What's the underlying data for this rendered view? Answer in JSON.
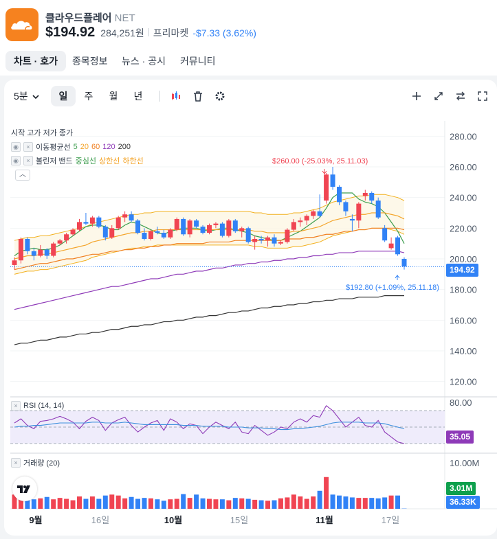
{
  "header": {
    "name": "클라우드플레어",
    "ticker": "NET",
    "price": "$194.92",
    "price_krw": "284,251원",
    "market": "프리마켓",
    "change": "-$7.33 (3.62%)",
    "logo_icon": "cloud-icon",
    "brand_color": "#f6821f"
  },
  "tabs": [
    "차트 · 호가",
    "종목정보",
    "뉴스 · 공시",
    "커뮤니티"
  ],
  "toolbar": {
    "interval": "5분",
    "periods": [
      "일",
      "주",
      "월",
      "년"
    ],
    "icons": [
      "candle-icon",
      "trash-icon",
      "gear-icon",
      "plus-icon",
      "expand-diagonal-icon",
      "swap-icon",
      "fullscreen-icon"
    ]
  },
  "legend": {
    "ohlc": "시작 고가 저가 종가",
    "ma_label": "이동평균선",
    "ma_periods": [
      "5",
      "20",
      "60",
      "120",
      "200"
    ],
    "bb_label": "볼린저 밴드",
    "bb_middle": "중심선",
    "bb_upper": "상한선",
    "bb_lower": "하한선",
    "rsi_label": "RSI (14, 14)",
    "volume_label": "거래량 (20)"
  },
  "annotations": {
    "high": "$260.00 (-25.03%, 25.11.03)",
    "low": "$192.80 (+1.09%, 25.11.18)"
  },
  "tags": {
    "price": "194.92",
    "rsi": "35.05",
    "volume_a": "3.01M",
    "volume_b": "36.33K"
  },
  "axes": {
    "price_ticks": [
      "280.00",
      "260.00",
      "240.00",
      "220.00",
      "200.00",
      "180.00",
      "160.00",
      "140.00",
      "120.00"
    ],
    "rsi_ticks": [
      "80.00"
    ],
    "volume_ticks": [
      "10.00M"
    ],
    "x_ticks": [
      "9월",
      "16일",
      "10월",
      "15일",
      "11월",
      "17일"
    ]
  },
  "colors": {
    "up": "#f04452",
    "down": "#3182f6",
    "ma5": "#3c9d4e",
    "ma20": "#f4a52b",
    "ma60": "#f07f20",
    "ma120": "#8e3ab8",
    "ma200": "#333333",
    "bb_upper": "#f2b01e",
    "rsi": "#8e3ab8",
    "rsi_signal": "#3c8fdd",
    "volume_tag": "#0ea04d"
  },
  "chart_data": {
    "type": "candlestick",
    "y_range": [
      110,
      290
    ],
    "candles": [
      {
        "o": 196,
        "h": 201,
        "l": 193,
        "c": 199
      },
      {
        "o": 199,
        "h": 214,
        "l": 197,
        "c": 213
      },
      {
        "o": 213,
        "h": 214,
        "l": 203,
        "c": 205
      },
      {
        "o": 205,
        "h": 207,
        "l": 199,
        "c": 202
      },
      {
        "o": 202,
        "h": 209,
        "l": 201,
        "c": 206
      },
      {
        "o": 206,
        "h": 207,
        "l": 200,
        "c": 202
      },
      {
        "o": 202,
        "h": 211,
        "l": 201,
        "c": 210
      },
      {
        "o": 210,
        "h": 213,
        "l": 209,
        "c": 212
      },
      {
        "o": 212,
        "h": 217,
        "l": 210,
        "c": 216
      },
      {
        "o": 216,
        "h": 220,
        "l": 215,
        "c": 219
      },
      {
        "o": 219,
        "h": 226,
        "l": 218,
        "c": 224
      },
      {
        "o": 224,
        "h": 230,
        "l": 222,
        "c": 223
      },
      {
        "o": 223,
        "h": 228,
        "l": 221,
        "c": 227
      },
      {
        "o": 227,
        "h": 228,
        "l": 220,
        "c": 221
      },
      {
        "o": 221,
        "h": 222,
        "l": 212,
        "c": 214
      },
      {
        "o": 214,
        "h": 222,
        "l": 213,
        "c": 220
      },
      {
        "o": 220,
        "h": 228,
        "l": 219,
        "c": 227
      },
      {
        "o": 227,
        "h": 231,
        "l": 224,
        "c": 229
      },
      {
        "o": 229,
        "h": 231,
        "l": 224,
        "c": 225
      },
      {
        "o": 225,
        "h": 226,
        "l": 216,
        "c": 217
      },
      {
        "o": 217,
        "h": 220,
        "l": 212,
        "c": 213
      },
      {
        "o": 213,
        "h": 219,
        "l": 212,
        "c": 218
      },
      {
        "o": 218,
        "h": 221,
        "l": 216,
        "c": 217
      },
      {
        "o": 217,
        "h": 219,
        "l": 213,
        "c": 214
      },
      {
        "o": 214,
        "h": 220,
        "l": 213,
        "c": 219
      },
      {
        "o": 219,
        "h": 227,
        "l": 218,
        "c": 226
      },
      {
        "o": 226,
        "h": 227,
        "l": 215,
        "c": 216
      },
      {
        "o": 216,
        "h": 226,
        "l": 214,
        "c": 225
      },
      {
        "o": 225,
        "h": 226,
        "l": 220,
        "c": 221
      },
      {
        "o": 221,
        "h": 222,
        "l": 216,
        "c": 217
      },
      {
        "o": 217,
        "h": 223,
        "l": 216,
        "c": 222
      },
      {
        "o": 222,
        "h": 224,
        "l": 220,
        "c": 223
      },
      {
        "o": 223,
        "h": 224,
        "l": 214,
        "c": 215
      },
      {
        "o": 215,
        "h": 226,
        "l": 214,
        "c": 225
      },
      {
        "o": 225,
        "h": 226,
        "l": 217,
        "c": 218
      },
      {
        "o": 218,
        "h": 221,
        "l": 214,
        "c": 220
      },
      {
        "o": 220,
        "h": 221,
        "l": 210,
        "c": 211
      },
      {
        "o": 211,
        "h": 215,
        "l": 206,
        "c": 213
      },
      {
        "o": 213,
        "h": 215,
        "l": 210,
        "c": 212
      },
      {
        "o": 212,
        "h": 215,
        "l": 208,
        "c": 214
      },
      {
        "o": 214,
        "h": 216,
        "l": 208,
        "c": 210
      },
      {
        "o": 210,
        "h": 212,
        "l": 209,
        "c": 211
      },
      {
        "o": 211,
        "h": 220,
        "l": 210,
        "c": 219
      },
      {
        "o": 219,
        "h": 226,
        "l": 218,
        "c": 224
      },
      {
        "o": 224,
        "h": 227,
        "l": 221,
        "c": 225
      },
      {
        "o": 225,
        "h": 229,
        "l": 222,
        "c": 228
      },
      {
        "o": 228,
        "h": 232,
        "l": 226,
        "c": 231
      },
      {
        "o": 231,
        "h": 242,
        "l": 227,
        "c": 228
      },
      {
        "o": 238,
        "h": 256,
        "l": 236,
        "c": 255
      },
      {
        "o": 255,
        "h": 260,
        "l": 245,
        "c": 247
      },
      {
        "o": 247,
        "h": 248,
        "l": 235,
        "c": 237
      },
      {
        "o": 237,
        "h": 238,
        "l": 228,
        "c": 231
      },
      {
        "o": 226,
        "h": 229,
        "l": 218,
        "c": 225
      },
      {
        "o": 225,
        "h": 237,
        "l": 220,
        "c": 236
      },
      {
        "o": 241,
        "h": 245,
        "l": 238,
        "c": 243
      },
      {
        "o": 243,
        "h": 244,
        "l": 236,
        "c": 238
      },
      {
        "o": 238,
        "h": 240,
        "l": 226,
        "c": 227
      },
      {
        "o": 220,
        "h": 222,
        "l": 211,
        "c": 212
      },
      {
        "o": 207,
        "h": 214,
        "l": 206,
        "c": 210
      },
      {
        "o": 214,
        "h": 215,
        "l": 202,
        "c": 203
      },
      {
        "o": 200,
        "h": 201,
        "l": 193,
        "c": 195
      }
    ],
    "ma": {
      "5": [
        202,
        205,
        206,
        207,
        206,
        206,
        207,
        209,
        212,
        215,
        218,
        221,
        222,
        222,
        221,
        219,
        219,
        222,
        224,
        223,
        221,
        219,
        217,
        216,
        218,
        219,
        220,
        220,
        220,
        219,
        218,
        219,
        220,
        220,
        219,
        218,
        217,
        215,
        214,
        213,
        212,
        212,
        214,
        216,
        218,
        221,
        224,
        227,
        233,
        240,
        243,
        243,
        243,
        239,
        237,
        236,
        234,
        230,
        224,
        218,
        210
      ],
      "20": [
        200,
        201,
        202,
        202,
        203,
        203,
        204,
        205,
        206,
        207,
        208,
        209,
        211,
        212,
        213,
        214,
        215,
        216,
        217,
        217,
        218,
        218,
        219,
        219,
        219,
        219,
        219,
        219,
        219,
        219,
        219,
        219,
        219,
        219,
        219,
        219,
        219,
        218,
        218,
        217,
        217,
        217,
        217,
        218,
        218,
        219,
        220,
        221,
        223,
        225,
        226,
        227,
        228,
        229,
        229,
        230,
        230,
        230,
        229,
        228,
        226
      ],
      "60": [
        193,
        194,
        195,
        196,
        197,
        197,
        198,
        199,
        200,
        200,
        201,
        202,
        203,
        203,
        204,
        205,
        205,
        206,
        206,
        207,
        207,
        208,
        208,
        209,
        209,
        210,
        210,
        210,
        210,
        210,
        211,
        211,
        211,
        211,
        212,
        212,
        212,
        212,
        212,
        212,
        212,
        212,
        213,
        213,
        213,
        214,
        214,
        215,
        216,
        216,
        217,
        218,
        218,
        219,
        219,
        220,
        220,
        220,
        220,
        220,
        219
      ],
      "120": [
        167,
        168,
        169,
        170,
        171,
        172,
        173,
        174,
        175,
        176,
        177,
        178,
        179,
        180,
        181,
        182,
        182,
        183,
        184,
        185,
        186,
        187,
        187,
        188,
        189,
        190,
        190,
        191,
        192,
        192,
        193,
        194,
        194,
        195,
        196,
        196,
        197,
        197,
        198,
        198,
        199,
        199,
        200,
        200,
        201,
        201,
        202,
        202,
        203,
        203,
        204,
        204,
        204,
        205,
        205,
        205,
        205,
        205,
        205,
        205,
        204
      ],
      "200": [
        144,
        145,
        145,
        146,
        147,
        147,
        148,
        149,
        149,
        150,
        151,
        151,
        152,
        152,
        153,
        154,
        154,
        155,
        156,
        156,
        157,
        157,
        158,
        159,
        159,
        160,
        160,
        161,
        162,
        162,
        163,
        163,
        164,
        165,
        165,
        166,
        166,
        167,
        168,
        168,
        169,
        169,
        170,
        170,
        171,
        171,
        172,
        172,
        173,
        173,
        174,
        174,
        174,
        175,
        175,
        175,
        175,
        176,
        176,
        176,
        176
      ]
    },
    "rsi": [
      55,
      60,
      52,
      48,
      57,
      58,
      60,
      63,
      60,
      56,
      48,
      57,
      62,
      58,
      46,
      55,
      59,
      62,
      52,
      44,
      50,
      55,
      58,
      46,
      60,
      56,
      48,
      54,
      52,
      42,
      50,
      56,
      52,
      48,
      56,
      44,
      42,
      52,
      46,
      40,
      44,
      50,
      48,
      56,
      60,
      56,
      64,
      62,
      76,
      70,
      60,
      50,
      56,
      62,
      52,
      50,
      58,
      44,
      38,
      32,
      30
    ],
    "rsi_signal": [
      50,
      51,
      51,
      52,
      52,
      53,
      54,
      55,
      55,
      55,
      55,
      55,
      56,
      56,
      55,
      55,
      55,
      56,
      55,
      54,
      53,
      53,
      53,
      53,
      53,
      53,
      52,
      52,
      52,
      51,
      51,
      51,
      51,
      50,
      50,
      50,
      49,
      49,
      49,
      48,
      48,
      47,
      47,
      48,
      48,
      49,
      50,
      51,
      53,
      55,
      56,
      56,
      56,
      56,
      55,
      55,
      55,
      54,
      52,
      50,
      48
    ],
    "volume": [
      3.0,
      2.7,
      2.2,
      2.0,
      2.2,
      2.5,
      2.0,
      2.3,
      2.1,
      1.8,
      2.6,
      2.1,
      2.6,
      2.1,
      2.8,
      3.0,
      2.8,
      2.2,
      2.5,
      2.1,
      2.3,
      2.2,
      2.0,
      1.7,
      2.0,
      2.1,
      3.1,
      2.3,
      3.0,
      2.2,
      2.1,
      2.0,
      2.0,
      1.8,
      2.3,
      2.2,
      2.1,
      1.9,
      1.8,
      1.7,
      1.8,
      2.2,
      2.4,
      3.0,
      2.6,
      2.1,
      2.6,
      3.8,
      6.7,
      3.0,
      2.8,
      2.6,
      2.4,
      2.3,
      2.3,
      2.3,
      2.2,
      2.4,
      2.8,
      2.8,
      0.05
    ]
  }
}
